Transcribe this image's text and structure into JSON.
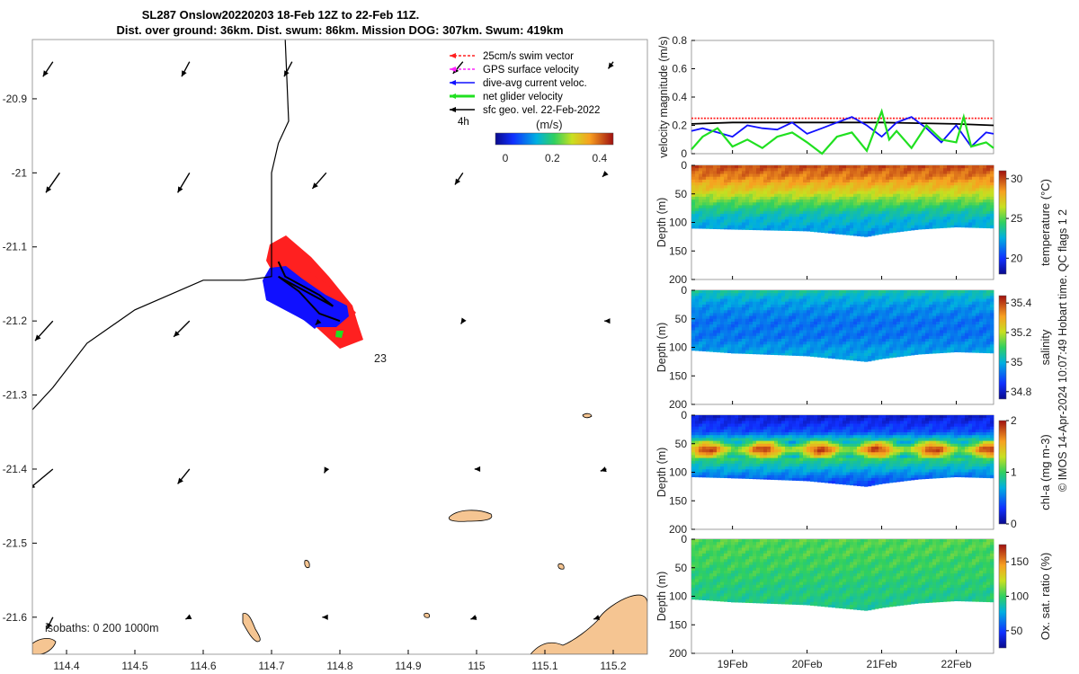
{
  "title": {
    "line1": "SL287 Onslow20220203 18-Feb 12Z to 22-Feb 11Z.",
    "line2": "Dist. over ground: 36km. Dist. swum: 86km. Mission DOG: 307km. Swum: 419km"
  },
  "credit": "© IMOS 14-Apr-2024 10:07:49 Hobart time. QC flags 1  2",
  "colors": {
    "swim": "#ff2020",
    "gps": "#ff20ff",
    "dive": "#1010ff",
    "net": "#20e020",
    "sfc": "#000000",
    "land": "#f5c592"
  },
  "chart_data": [
    {
      "type": "map",
      "xlim": [
        114.35,
        115.25
      ],
      "ylim": [
        -21.65,
        -20.82
      ],
      "xticks": [
        "114.4",
        "114.5",
        "114.6",
        "114.7",
        "114.8",
        "114.9",
        "115",
        "115.1",
        "115.2"
      ],
      "yticks": [
        "-20.9",
        "-21",
        "-21.1",
        "-21.2",
        "-21.3",
        "-21.4",
        "-21.5",
        "-21.6"
      ],
      "legend": [
        {
          "label": "25cm/s swim vector",
          "color": "#ff2020"
        },
        {
          "label": "GPS surface velocity",
          "color": "#ff20ff"
        },
        {
          "label": "dive-avg current veloc.",
          "color": "#1010ff"
        },
        {
          "label": "net glider velocity",
          "color": "#20e020"
        },
        {
          "label": "sfc geo. vel. 22-Feb-2022",
          "color": "#000000"
        }
      ],
      "legend_note": "4h",
      "colorbar": {
        "label": "(m/s)",
        "ticks": [
          "0",
          "0.2",
          "0.4"
        ],
        "range": [
          0,
          0.5
        ]
      },
      "isobath_note": "isobaths: 0   200  1000m",
      "annotation": "23",
      "isobath_0m": [
        [
          114.72,
          -20.82
        ],
        [
          114.725,
          -20.93
        ],
        [
          114.71,
          -20.96
        ],
        [
          114.7,
          -21.0
        ],
        [
          114.7,
          -21.14
        ],
        [
          114.66,
          -21.145
        ],
        [
          114.6,
          -21.145
        ],
        [
          114.5,
          -21.185
        ],
        [
          114.43,
          -21.23
        ],
        [
          114.38,
          -21.29
        ],
        [
          114.35,
          -21.32
        ]
      ],
      "glider_track": [
        [
          114.71,
          -21.12
        ],
        [
          114.72,
          -21.14
        ],
        [
          114.74,
          -21.15
        ],
        [
          114.77,
          -21.165
        ],
        [
          114.79,
          -21.18
        ],
        [
          114.78,
          -21.175
        ],
        [
          114.75,
          -21.16
        ],
        [
          114.73,
          -21.15
        ],
        [
          114.71,
          -21.14
        ],
        [
          114.74,
          -21.16
        ],
        [
          114.77,
          -21.19
        ],
        [
          114.8,
          -21.2
        ]
      ],
      "current_arrows": [
        {
          "lon": 114.38,
          "lat": -20.85,
          "u": -0.1,
          "v": -0.15
        },
        {
          "lon": 114.58,
          "lat": -20.85,
          "u": -0.08,
          "v": -0.15
        },
        {
          "lon": 114.73,
          "lat": -20.85,
          "u": -0.08,
          "v": -0.15
        },
        {
          "lon": 114.98,
          "lat": -20.85,
          "u": -0.1,
          "v": -0.12
        },
        {
          "lon": 115.2,
          "lat": -20.85,
          "u": -0.05,
          "v": -0.07
        },
        {
          "lon": 114.39,
          "lat": -21.0,
          "u": -0.14,
          "v": -0.2
        },
        {
          "lon": 114.58,
          "lat": -21.0,
          "u": -0.12,
          "v": -0.2
        },
        {
          "lon": 114.78,
          "lat": -21.0,
          "u": -0.14,
          "v": -0.16
        },
        {
          "lon": 114.98,
          "lat": -21.0,
          "u": -0.08,
          "v": -0.12
        },
        {
          "lon": 115.19,
          "lat": -21.0,
          "u": -0.04,
          "v": -0.04
        },
        {
          "lon": 114.38,
          "lat": -21.2,
          "u": -0.18,
          "v": -0.2
        },
        {
          "lon": 114.58,
          "lat": -21.2,
          "u": -0.16,
          "v": -0.16
        },
        {
          "lon": 114.77,
          "lat": -21.2,
          "u": -0.04,
          "v": -0.04
        },
        {
          "lon": 114.98,
          "lat": -21.2,
          "u": -0.02,
          "v": -0.03
        },
        {
          "lon": 115.19,
          "lat": -21.2,
          "u": -0.02,
          "v": 0.0
        },
        {
          "lon": 114.38,
          "lat": -21.4,
          "u": -0.24,
          "v": -0.2
        },
        {
          "lon": 114.58,
          "lat": -21.4,
          "u": -0.12,
          "v": -0.15
        },
        {
          "lon": 114.78,
          "lat": -21.4,
          "u": -0.02,
          "v": -0.04
        },
        {
          "lon": 115.0,
          "lat": -21.4,
          "u": -0.02,
          "v": 0.0
        },
        {
          "lon": 115.19,
          "lat": -21.4,
          "u": -0.06,
          "v": -0.02
        },
        {
          "lon": 114.38,
          "lat": -21.6,
          "u": -0.06,
          "v": -0.12
        },
        {
          "lon": 114.58,
          "lat": -21.6,
          "u": -0.04,
          "v": -0.02
        },
        {
          "lon": 114.78,
          "lat": -21.6,
          "u": -0.04,
          "v": 0.0
        },
        {
          "lon": 115.0,
          "lat": -21.6,
          "u": -0.06,
          "v": -0.02
        },
        {
          "lon": 115.18,
          "lat": -21.6,
          "u": -0.06,
          "v": -0.02
        }
      ]
    },
    {
      "type": "line",
      "ylabel": "velocity magnitude (m/s)",
      "ylim": [
        0,
        0.8
      ],
      "yticks": [
        "0",
        "0.2",
        "0.4",
        "0.6",
        "0.8"
      ],
      "xlim": [
        18.45,
        22.5
      ],
      "xticks": [
        {
          "x": 19,
          "label": "19Feb"
        },
        {
          "x": 20,
          "label": "20Feb"
        },
        {
          "x": 21,
          "label": "21Feb"
        },
        {
          "x": 22,
          "label": "22Feb"
        }
      ],
      "series": [
        {
          "name": "25cm/s swim vector",
          "color": "#ff2020",
          "x": [
            18.45,
            22.5
          ],
          "y": [
            0.25,
            0.25
          ]
        },
        {
          "name": "sfc geo",
          "color": "#000000",
          "x": [
            18.45,
            19.0,
            20.0,
            21.0,
            22.0,
            22.5
          ],
          "y": [
            0.21,
            0.22,
            0.22,
            0.22,
            0.21,
            0.2
          ]
        },
        {
          "name": "dive-avg current veloc.",
          "color": "#1010ff",
          "x": [
            18.45,
            18.6,
            18.8,
            19.0,
            19.2,
            19.4,
            19.6,
            19.8,
            20.0,
            20.2,
            20.4,
            20.6,
            20.8,
            21.0,
            21.2,
            21.4,
            21.6,
            21.8,
            22.0,
            22.2,
            22.4,
            22.5
          ],
          "y": [
            0.16,
            0.18,
            0.15,
            0.12,
            0.2,
            0.18,
            0.17,
            0.22,
            0.14,
            0.18,
            0.22,
            0.26,
            0.2,
            0.12,
            0.22,
            0.26,
            0.18,
            0.08,
            0.2,
            0.05,
            0.15,
            0.14
          ]
        },
        {
          "name": "net glider velocity",
          "color": "#20e020",
          "x": [
            18.45,
            18.6,
            18.8,
            19.0,
            19.2,
            19.4,
            19.6,
            19.8,
            20.0,
            20.2,
            20.4,
            20.6,
            20.8,
            21.0,
            21.1,
            21.2,
            21.4,
            21.6,
            21.8,
            22.0,
            22.1,
            22.2,
            22.4,
            22.5
          ],
          "y": [
            0.03,
            0.12,
            0.18,
            0.05,
            0.1,
            0.04,
            0.12,
            0.15,
            0.08,
            0.0,
            0.12,
            0.15,
            0.02,
            0.3,
            0.1,
            0.16,
            0.04,
            0.2,
            0.1,
            0.08,
            0.26,
            0.05,
            0.08,
            0.04
          ]
        }
      ]
    },
    {
      "type": "heatmap",
      "variable": "temperature",
      "ylabel": "Depth (m)",
      "cbar_label": "temperature (°C)",
      "cbar_ticks": [
        "20",
        "25",
        "30"
      ],
      "crange": [
        18,
        31
      ],
      "ylim": [
        0,
        200
      ],
      "yticks": [
        "0",
        "50",
        "100",
        "150",
        "200"
      ],
      "xlim": [
        18.45,
        22.5
      ],
      "bottom_depth": [
        [
          18.45,
          110
        ],
        [
          19.0,
          112
        ],
        [
          20.0,
          115
        ],
        [
          20.8,
          125
        ],
        [
          21.0,
          120
        ],
        [
          21.5,
          112
        ],
        [
          22.0,
          108
        ],
        [
          22.5,
          110
        ]
      ],
      "profile": [
        [
          0,
          30
        ],
        [
          20,
          29
        ],
        [
          45,
          27
        ],
        [
          70,
          24.5
        ],
        [
          90,
          23
        ],
        [
          120,
          22
        ]
      ]
    },
    {
      "type": "heatmap",
      "variable": "salinity",
      "ylabel": "Depth (m)",
      "cbar_label": "salinity",
      "cbar_ticks": [
        "34.8",
        "35",
        "35.2",
        "35.4"
      ],
      "crange": [
        34.75,
        35.45
      ],
      "ylim": [
        0,
        200
      ],
      "yticks": [
        "0",
        "50",
        "100",
        "150",
        "200"
      ],
      "xlim": [
        18.45,
        22.5
      ],
      "bottom_depth": [
        [
          18.45,
          105
        ],
        [
          19.0,
          110
        ],
        [
          20.0,
          115
        ],
        [
          20.8,
          125
        ],
        [
          21.0,
          120
        ],
        [
          21.5,
          112
        ],
        [
          22.0,
          108
        ],
        [
          22.5,
          110
        ]
      ],
      "profile": [
        [
          0,
          35.05
        ],
        [
          20,
          34.98
        ],
        [
          50,
          34.93
        ],
        [
          80,
          34.93
        ],
        [
          110,
          34.98
        ]
      ]
    },
    {
      "type": "heatmap",
      "variable": "chl-a",
      "ylabel": "Depth (m)",
      "cbar_label": "chl-a (mg m-3)",
      "cbar_ticks": [
        "0",
        "1",
        "2"
      ],
      "crange": [
        0,
        2
      ],
      "ylim": [
        0,
        200
      ],
      "yticks": [
        "0",
        "50",
        "100",
        "150",
        "200"
      ],
      "xlim": [
        18.45,
        22.5
      ],
      "bottom_depth": [
        [
          18.45,
          108
        ],
        [
          19.0,
          110
        ],
        [
          20.0,
          115
        ],
        [
          20.8,
          125
        ],
        [
          21.0,
          120
        ],
        [
          21.5,
          112
        ],
        [
          22.0,
          108
        ],
        [
          22.5,
          110
        ]
      ],
      "profile": [
        [
          0,
          0.15
        ],
        [
          30,
          0.4
        ],
        [
          50,
          1.1
        ],
        [
          60,
          1.6
        ],
        [
          75,
          1.0
        ],
        [
          95,
          0.7
        ],
        [
          115,
          0.4
        ]
      ]
    },
    {
      "type": "heatmap",
      "variable": "oxygen",
      "ylabel": "Depth (m)",
      "cbar_label": "Ox. sat. ratio (%)",
      "cbar_ticks": [
        "50",
        "100",
        "150"
      ],
      "crange": [
        25,
        175
      ],
      "ylim": [
        0,
        200
      ],
      "yticks": [
        "0",
        "50",
        "100",
        "150",
        "200"
      ],
      "xlim": [
        18.45,
        22.5
      ],
      "bottom_depth": [
        [
          18.45,
          105
        ],
        [
          19.0,
          110
        ],
        [
          20.0,
          115
        ],
        [
          20.8,
          125
        ],
        [
          21.0,
          120
        ],
        [
          21.5,
          112
        ],
        [
          22.0,
          108
        ],
        [
          22.5,
          110
        ]
      ],
      "profile": [
        [
          0,
          105
        ],
        [
          50,
          100
        ],
        [
          90,
          95
        ],
        [
          120,
          92
        ]
      ]
    }
  ]
}
